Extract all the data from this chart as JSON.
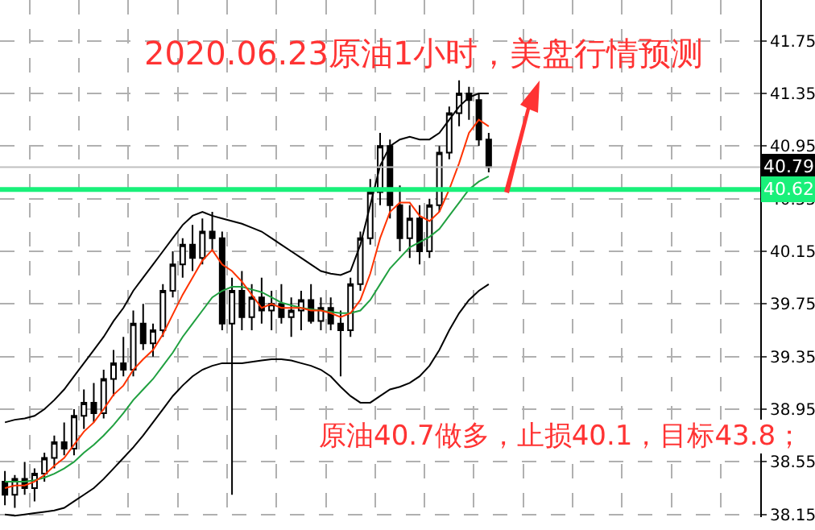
{
  "chart_data": {
    "type": "candlestick",
    "title": "2020.06.23原油1小时，美盘行情预测",
    "annotations": [
      "原油40.7做多，止损40.1，目标43.8；"
    ],
    "categories": [
      null,
      null,
      null,
      null,
      null,
      null,
      null,
      null,
      null,
      null,
      null,
      null,
      null,
      null,
      null,
      null,
      null,
      null,
      null,
      null,
      null,
      null,
      null,
      null,
      null,
      null,
      null,
      null,
      null,
      null,
      null,
      null,
      null,
      null,
      null,
      null,
      null,
      null,
      null,
      null,
      null,
      null,
      null,
      null,
      null,
      null,
      null,
      null,
      null,
      null,
      null,
      null,
      null,
      null,
      null,
      null,
      null,
      null,
      null,
      null,
      null,
      null,
      null,
      null,
      null,
      null,
      null,
      null,
      null,
      null,
      null,
      null,
      null,
      null,
      null,
      null,
      null
    ],
    "ohlc": [
      [
        38.4,
        38.48,
        38.22,
        38.3
      ],
      [
        38.3,
        38.45,
        38.2,
        38.42
      ],
      [
        38.42,
        38.55,
        38.3,
        38.35
      ],
      [
        38.35,
        38.5,
        38.25,
        38.46
      ],
      [
        38.46,
        38.62,
        38.4,
        38.58
      ],
      [
        38.58,
        38.75,
        38.5,
        38.7
      ],
      [
        38.7,
        38.85,
        38.6,
        38.65
      ],
      [
        38.65,
        38.95,
        38.6,
        38.9
      ],
      [
        38.9,
        39.1,
        38.8,
        39.0
      ],
      [
        39.0,
        39.15,
        38.85,
        38.92
      ],
      [
        38.92,
        39.25,
        38.88,
        39.18
      ],
      [
        39.18,
        39.4,
        39.05,
        39.3
      ],
      [
        39.3,
        39.5,
        39.2,
        39.25
      ],
      [
        39.25,
        39.7,
        39.2,
        39.6
      ],
      [
        39.6,
        39.75,
        39.4,
        39.45
      ],
      [
        39.45,
        39.6,
        39.35,
        39.55
      ],
      [
        39.55,
        39.9,
        39.5,
        39.85
      ],
      [
        39.85,
        40.15,
        39.8,
        40.05
      ],
      [
        40.05,
        40.25,
        39.95,
        40.2
      ],
      [
        40.2,
        40.35,
        40.0,
        40.1
      ],
      [
        40.1,
        40.4,
        40.05,
        40.3
      ],
      [
        40.3,
        40.45,
        40.15,
        40.25
      ],
      [
        40.25,
        40.3,
        39.55,
        39.6
      ],
      [
        39.6,
        39.95,
        38.3,
        39.85
      ],
      [
        39.85,
        40.0,
        39.55,
        39.65
      ],
      [
        39.65,
        39.9,
        39.55,
        39.8
      ],
      [
        39.8,
        39.95,
        39.6,
        39.7
      ],
      [
        39.7,
        39.85,
        39.55,
        39.75
      ],
      [
        39.75,
        39.9,
        39.6,
        39.65
      ],
      [
        39.65,
        39.8,
        39.5,
        39.7
      ],
      [
        39.7,
        39.85,
        39.55,
        39.78
      ],
      [
        39.78,
        39.9,
        39.6,
        39.62
      ],
      [
        39.62,
        39.8,
        39.55,
        39.72
      ],
      [
        39.72,
        39.8,
        39.55,
        39.6
      ],
      [
        39.6,
        39.7,
        39.2,
        39.55
      ],
      [
        39.55,
        39.95,
        39.5,
        39.9
      ],
      [
        39.9,
        40.3,
        39.85,
        40.25
      ],
      [
        40.25,
        40.7,
        40.2,
        40.6
      ],
      [
        40.6,
        41.05,
        40.5,
        40.95
      ],
      [
        40.95,
        41.0,
        40.4,
        40.5
      ],
      [
        40.5,
        40.65,
        40.15,
        40.25
      ],
      [
        40.25,
        40.5,
        40.1,
        40.4
      ],
      [
        40.4,
        40.5,
        40.05,
        40.15
      ],
      [
        40.15,
        40.55,
        40.1,
        40.5
      ],
      [
        40.5,
        40.95,
        40.45,
        40.9
      ],
      [
        40.9,
        41.25,
        40.85,
        41.2
      ],
      [
        41.2,
        41.45,
        41.1,
        41.35
      ],
      [
        41.35,
        41.4,
        41.15,
        41.3
      ],
      [
        41.3,
        41.35,
        40.95,
        41.0
      ],
      [
        41.0,
        41.05,
        40.75,
        40.79
      ],
      null,
      null,
      null,
      null,
      null,
      null,
      null,
      null,
      null,
      null,
      null,
      null,
      null,
      null,
      null,
      null,
      null,
      null,
      null,
      null,
      null,
      null,
      null,
      null,
      null,
      null,
      null
    ],
    "series": [
      {
        "type": "line",
        "color": "#000000",
        "values": [
          38.85,
          38.87,
          38.88,
          38.9,
          38.95,
          39.02,
          39.1,
          39.2,
          39.3,
          39.4,
          39.5,
          39.62,
          39.72,
          39.85,
          39.95,
          40.05,
          40.15,
          40.25,
          40.35,
          40.42,
          40.45,
          40.42,
          40.4,
          40.38,
          40.36,
          40.33,
          40.3,
          40.25,
          40.2,
          40.15,
          40.1,
          40.05,
          40.0,
          39.98,
          39.97,
          40.0,
          40.2,
          40.5,
          40.8,
          40.95,
          41.0,
          41.02,
          41.0,
          41.0,
          41.05,
          41.15,
          41.25,
          41.32,
          41.35,
          41.35,
          null,
          null,
          null,
          null,
          null,
          null,
          null,
          null,
          null,
          null,
          null,
          null,
          null,
          null,
          null,
          null,
          null,
          null,
          null,
          null,
          null,
          null,
          null,
          null,
          null,
          null,
          null
        ]
      },
      {
        "type": "line",
        "color": "#000000",
        "values": [
          38.15,
          38.14,
          38.15,
          38.16,
          38.17,
          38.18,
          38.2,
          38.25,
          38.3,
          38.35,
          38.42,
          38.5,
          38.58,
          38.66,
          38.75,
          38.85,
          38.95,
          39.05,
          39.13,
          39.2,
          39.25,
          39.28,
          39.3,
          39.3,
          39.3,
          39.31,
          39.32,
          39.33,
          39.33,
          39.32,
          39.3,
          39.28,
          39.25,
          39.2,
          39.12,
          39.05,
          39.0,
          39.0,
          39.05,
          39.1,
          39.12,
          39.15,
          39.2,
          39.28,
          39.4,
          39.55,
          39.68,
          39.78,
          39.85,
          39.9,
          null,
          null,
          null,
          null,
          null,
          null,
          null,
          null,
          null,
          null,
          null,
          null,
          null,
          null,
          null,
          null,
          null,
          null,
          null,
          null,
          null,
          null,
          null,
          null,
          null,
          null,
          null
        ]
      },
      {
        "type": "line",
        "color": "#20a040",
        "values": [
          38.4,
          38.4,
          38.4,
          38.41,
          38.43,
          38.46,
          38.5,
          38.55,
          38.62,
          38.68,
          38.75,
          38.83,
          38.92,
          39.02,
          39.1,
          39.18,
          39.28,
          39.38,
          39.5,
          39.6,
          39.7,
          39.8,
          39.85,
          39.88,
          39.88,
          39.86,
          39.84,
          39.8,
          39.76,
          39.74,
          39.72,
          39.71,
          39.7,
          39.69,
          39.68,
          39.68,
          39.7,
          39.78,
          39.9,
          40.02,
          40.1,
          40.18,
          40.22,
          40.26,
          40.32,
          40.42,
          40.52,
          40.62,
          40.68,
          40.72,
          null,
          null,
          null,
          null,
          null,
          null,
          null,
          null,
          null,
          null,
          null,
          null,
          null,
          null,
          null,
          null,
          null,
          null,
          null,
          null,
          null,
          null,
          null,
          null,
          null,
          null,
          null
        ]
      },
      {
        "type": "line",
        "color": "#ff3300",
        "values": [
          38.35,
          38.37,
          38.37,
          38.4,
          38.45,
          38.52,
          38.58,
          38.68,
          38.78,
          38.85,
          38.95,
          39.06,
          39.13,
          39.25,
          39.33,
          39.4,
          39.52,
          39.67,
          39.82,
          39.95,
          40.08,
          40.16,
          40.05,
          40.0,
          39.92,
          39.82,
          39.72,
          39.75,
          39.72,
          39.72,
          39.72,
          39.7,
          39.7,
          39.68,
          39.65,
          39.68,
          39.78,
          39.98,
          40.25,
          40.45,
          40.52,
          40.52,
          40.42,
          40.38,
          40.45,
          40.62,
          40.82,
          41.05,
          41.15,
          41.1,
          null,
          null,
          null,
          null,
          null,
          null,
          null,
          null,
          null,
          null,
          null,
          null,
          null,
          null,
          null,
          null,
          null,
          null,
          null,
          null,
          null,
          null,
          null,
          null,
          null,
          null,
          null
        ]
      }
    ],
    "ref_lines": [
      {
        "axis": "y",
        "value": 40.79,
        "label": "40.79",
        "color": "#c0c0c0"
      },
      {
        "axis": "y",
        "value": 40.62,
        "label": "40.62",
        "color": "#19f07a"
      }
    ],
    "ylim": [
      38.13,
      42.06
    ],
    "yticks": [
      38.15,
      38.55,
      38.95,
      39.35,
      39.75,
      40.15,
      40.55,
      40.95,
      41.35,
      41.75
    ],
    "grid": true,
    "marker": "none",
    "line_style": "solid",
    "tick_labels": "y"
  }
}
